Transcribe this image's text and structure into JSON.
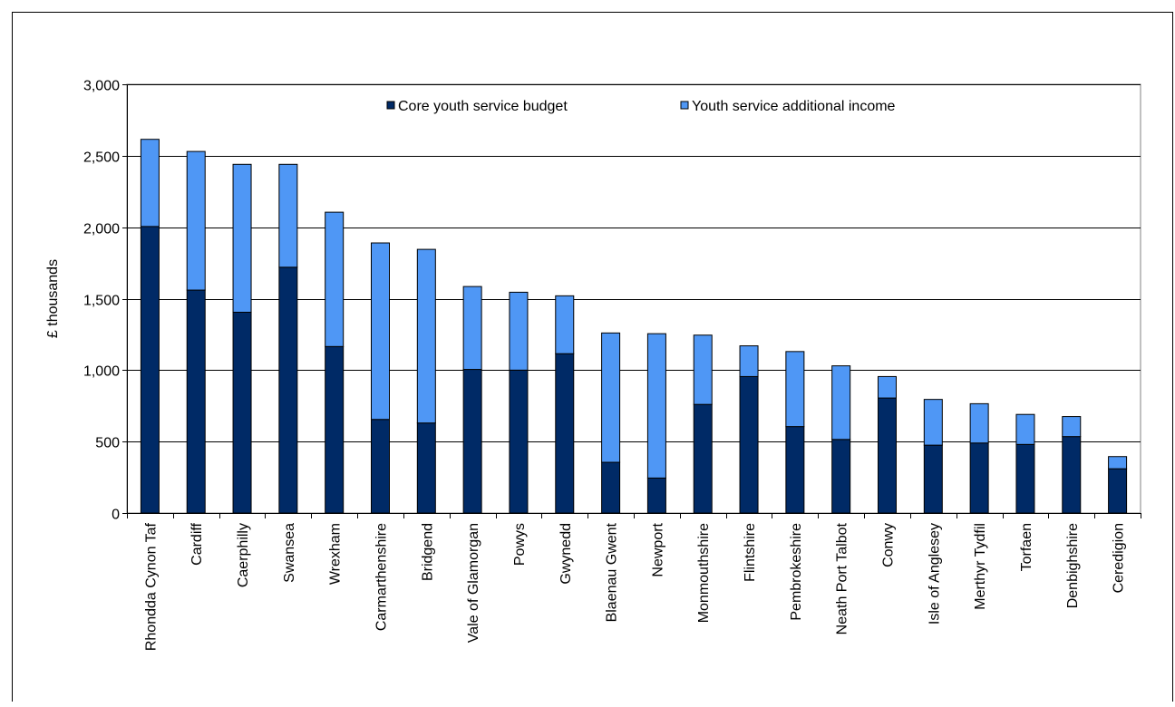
{
  "chart_data": {
    "type": "bar",
    "stacked": true,
    "title": "",
    "xlabel": "",
    "ylabel": "£ thousands",
    "ylim": [
      0,
      3000
    ],
    "yticks": [
      0,
      500,
      1000,
      1500,
      2000,
      2500,
      3000
    ],
    "ytick_labels": [
      "0",
      "500",
      "1,000",
      "1,500",
      "2,000",
      "2,500",
      "3,000"
    ],
    "grid": true,
    "legend_position": "top-center",
    "categories": [
      "Rhondda Cynon Taf",
      "Cardiff",
      "Caerphilly",
      "Swansea",
      "Wrexham",
      "Carmarthenshire",
      "Bridgend",
      "Vale of Glamorgan",
      "Powys",
      "Gwynedd",
      "Blaenau Gwent",
      "Newport",
      "Monmouthshire",
      "Flintshire",
      "Pembrokeshire",
      "Neath Port Talbot",
      "Conwy",
      "Isle of Anglesey",
      "Merthyr Tydfil",
      "Torfaen",
      "Denbighshire",
      "Ceredigion"
    ],
    "series": [
      {
        "name": "Core youth service budget",
        "color": "#002a66",
        "values": [
          2005,
          1560,
          1405,
          1720,
          1165,
          655,
          630,
          1005,
          1000,
          1115,
          355,
          245,
          760,
          955,
          605,
          515,
          805,
          475,
          490,
          480,
          535,
          310
        ]
      },
      {
        "name": "Youth service additional income",
        "color": "#4f97f5",
        "values": [
          610,
          970,
          1035,
          720,
          940,
          1235,
          1215,
          580,
          545,
          405,
          905,
          1010,
          485,
          215,
          525,
          515,
          150,
          320,
          275,
          210,
          140,
          85
        ]
      }
    ]
  }
}
